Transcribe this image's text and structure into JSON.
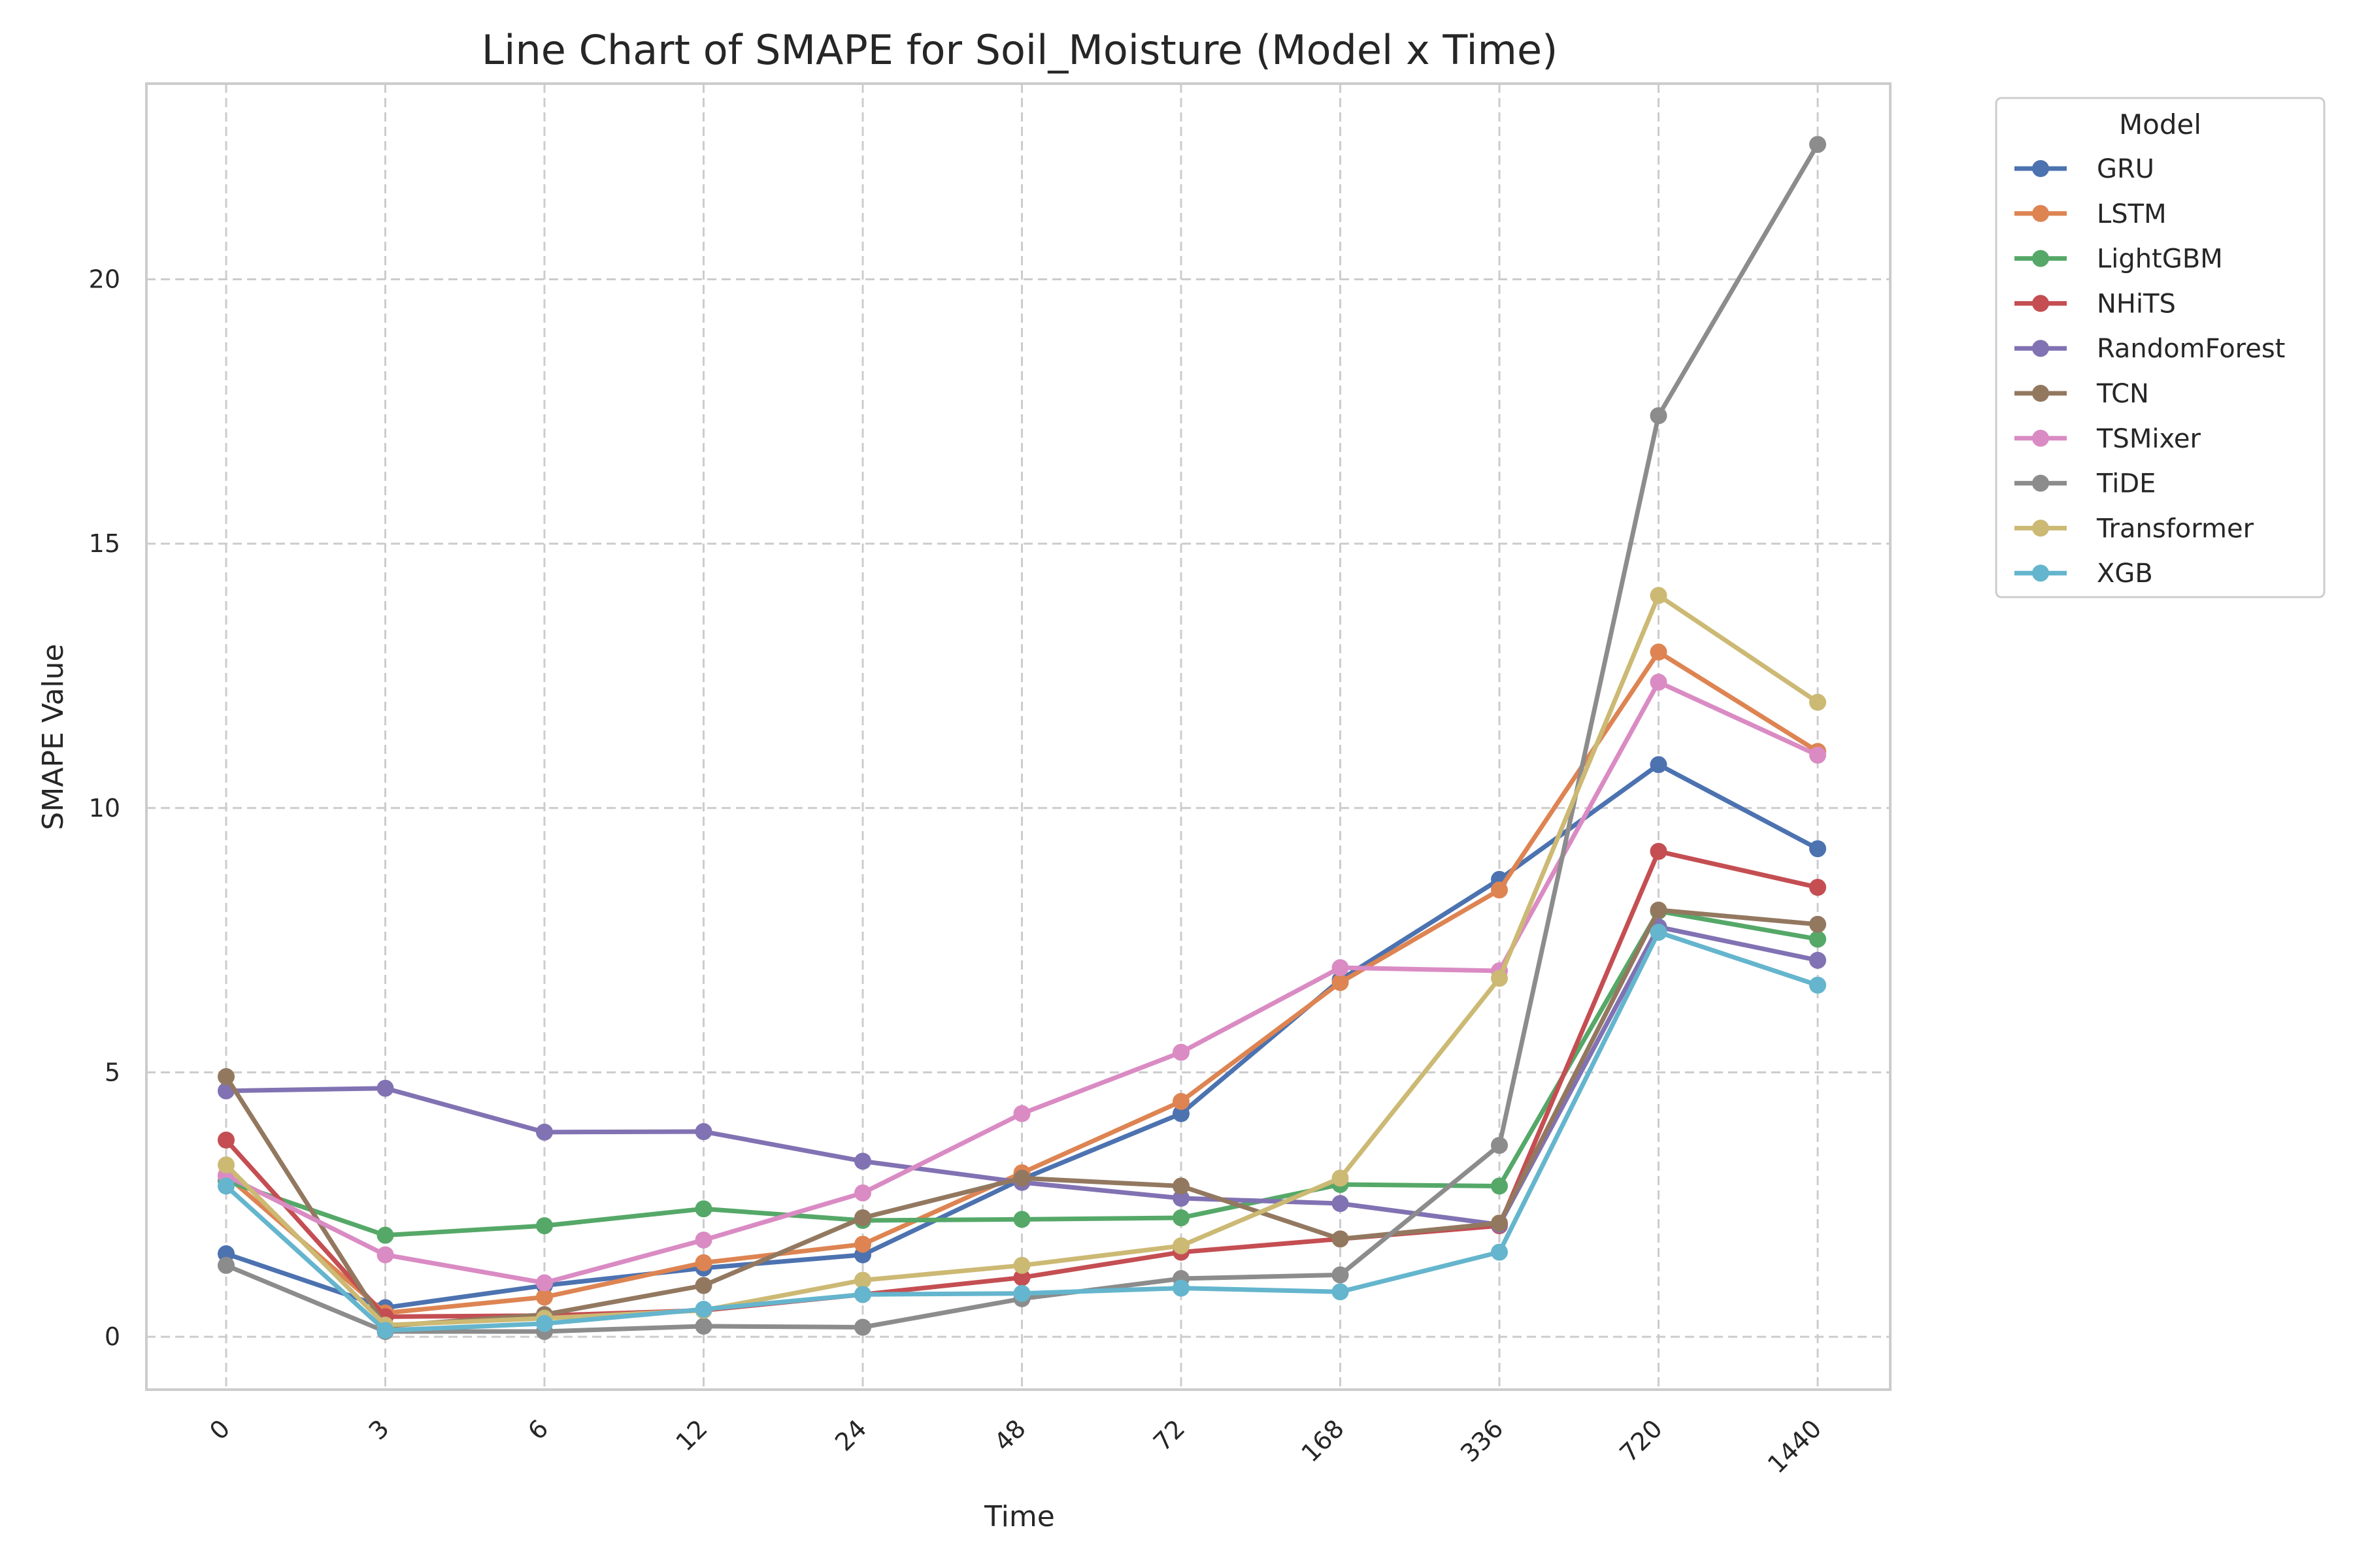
{
  "chart_data": {
    "type": "line",
    "title": "Line Chart of SMAPE for Soil_Moisture (Model x Time)",
    "xlabel": "Time",
    "ylabel": "SMAPE Value",
    "categories": [
      "0",
      "3",
      "6",
      "12",
      "24",
      "48",
      "72",
      "168",
      "336",
      "720",
      "1440"
    ],
    "yticks": [
      0,
      5,
      10,
      15,
      20
    ],
    "ylim": [
      -1.0,
      23.7
    ],
    "grid": true,
    "legend": {
      "title": "Model",
      "placement": "outside-top-right"
    },
    "series": [
      {
        "name": "GRU",
        "color": "#4c72b0",
        "values": [
          1.57,
          0.55,
          0.97,
          1.3,
          1.55,
          2.98,
          4.22,
          6.75,
          8.65,
          10.82,
          9.23
        ]
      },
      {
        "name": "LSTM",
        "color": "#dd8452",
        "values": [
          3.05,
          0.45,
          0.75,
          1.4,
          1.75,
          3.1,
          4.45,
          6.7,
          8.45,
          12.95,
          11.07
        ]
      },
      {
        "name": "LightGBM",
        "color": "#55a868",
        "values": [
          2.95,
          1.92,
          2.1,
          2.42,
          2.2,
          2.22,
          2.25,
          2.88,
          2.85,
          8.05,
          7.52
        ]
      },
      {
        "name": "NHiTS",
        "color": "#c44e52",
        "values": [
          3.72,
          0.38,
          0.4,
          0.5,
          0.8,
          1.12,
          1.6,
          1.85,
          2.1,
          9.18,
          8.5
        ]
      },
      {
        "name": "RandomForest",
        "color": "#8172b3",
        "values": [
          4.65,
          4.7,
          3.87,
          3.88,
          3.32,
          2.92,
          2.62,
          2.52,
          2.12,
          7.75,
          7.12
        ]
      },
      {
        "name": "TCN",
        "color": "#937860",
        "values": [
          4.92,
          0.2,
          0.42,
          0.97,
          2.25,
          3.0,
          2.85,
          1.85,
          2.15,
          8.07,
          7.8
        ]
      },
      {
        "name": "TSMixer",
        "color": "#da8bc3",
        "values": [
          3.05,
          1.55,
          1.02,
          1.83,
          2.72,
          4.22,
          5.38,
          6.98,
          6.92,
          12.38,
          11.0
        ]
      },
      {
        "name": "TiDE",
        "color": "#8c8c8c",
        "values": [
          1.35,
          0.1,
          0.1,
          0.2,
          0.18,
          0.72,
          1.1,
          1.17,
          3.62,
          17.42,
          22.55
        ]
      },
      {
        "name": "Transformer",
        "color": "#ccb974",
        "values": [
          3.25,
          0.22,
          0.35,
          0.5,
          1.07,
          1.35,
          1.72,
          3.0,
          6.78,
          14.02,
          12.0
        ]
      },
      {
        "name": "XGB",
        "color": "#64b5cd",
        "values": [
          2.85,
          0.12,
          0.25,
          0.52,
          0.8,
          0.82,
          0.92,
          0.85,
          1.6,
          7.65,
          6.65
        ]
      }
    ]
  }
}
